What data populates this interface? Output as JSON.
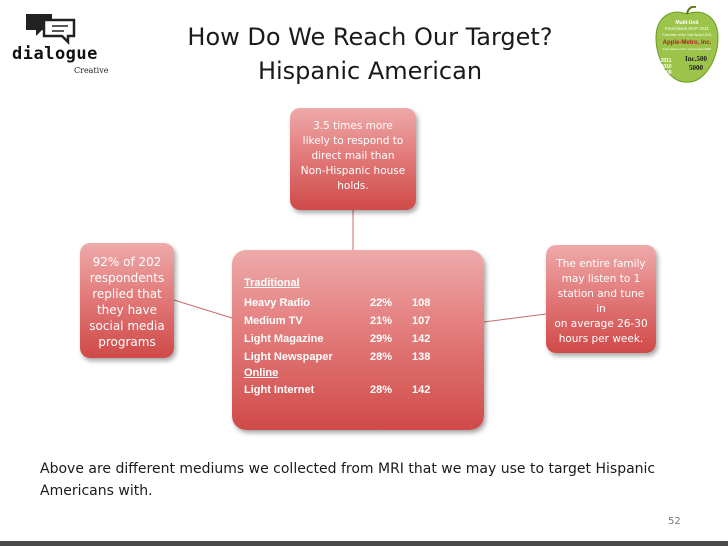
{
  "logo": {
    "wordmark": "dialogue",
    "sub": "Creative"
  },
  "badge": {
    "lines": [
      "Multi-Unit",
      "Franchisee MVP 2011",
      "Franchise of the Year Award 2011",
      "Apple-Metro, Inc.",
      "Franchisee of the Year Award 2009",
      "Inc.500",
      "5000",
      "2011",
      "2010",
      "2009"
    ]
  },
  "title": {
    "line1": "How Do We Reach Our Target?",
    "line2": "Hispanic American"
  },
  "box_top": [
    "3.5 times more",
    "likely to respond to",
    "direct mail than",
    "Non-Hispanic house",
    "holds."
  ],
  "box_left": [
    "92% of 202",
    "respondents",
    "replied that",
    "they have",
    "social media",
    "programs"
  ],
  "box_right": [
    "The entire family",
    "may listen to 1",
    "station and tune in",
    "on average 26-30",
    "hours per week."
  ],
  "center": {
    "traditional_header": "Traditional",
    "online_header": "Online",
    "traditional_rows": [
      {
        "medium": "Heavy Radio",
        "pct": "22%",
        "index": "108"
      },
      {
        "medium": "Medium TV",
        "pct": "21%",
        "index": "107"
      },
      {
        "medium": "Light Magazine",
        "pct": "29%",
        "index": "142"
      },
      {
        "medium": "Light Newspaper",
        "pct": "28%",
        "index": "138"
      }
    ],
    "online_rows": [
      {
        "medium": "Light Internet",
        "pct": "28%",
        "index": "142"
      }
    ]
  },
  "caption": "Above are different mediums we collected from MRI that we may use to target Hispanic Americans with.",
  "page_number": "52",
  "colors": {
    "box_gradient_top": "#eeaaaa",
    "box_gradient_bottom": "#cf4a48",
    "bottom_rule": "#4a4a4a"
  }
}
